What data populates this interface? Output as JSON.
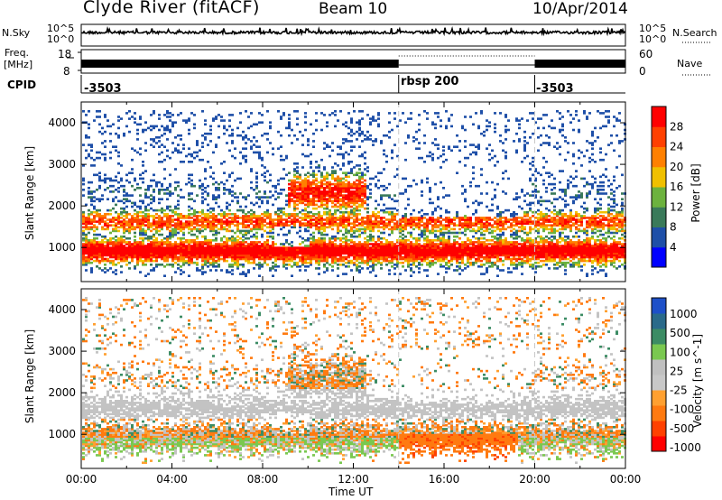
{
  "header": {
    "title": "Clyde River (fitACF)",
    "beam": "Beam 10",
    "date": "10/Apr/2014"
  },
  "top_panels": {
    "nsky_label": "N.Sky",
    "nsearch_label": "N.Search",
    "noise_ticks_left": [
      "10^5",
      "10^0"
    ],
    "noise_ticks_right": [
      "10^5",
      "10^0"
    ],
    "freq_label_line1": "Freq.",
    "freq_label_line2": "[MHz]",
    "freq_ticks": [
      "18",
      "8"
    ],
    "nave_label": "Nave",
    "nave_ticks": [
      "60",
      "0"
    ],
    "cpid_label": "CPID",
    "cpid_segments": [
      {
        "label": "-3503",
        "start_hour": 0
      },
      {
        "label": "rbsp 200",
        "start_hour": 14
      },
      {
        "label": "-3503",
        "start_hour": 20
      }
    ]
  },
  "colors": {
    "power": [
      "#0000ff",
      "#1e4fa8",
      "#3a7a5a",
      "#6cb23e",
      "#f0c000",
      "#ff8000",
      "#ff4000",
      "#ff0000"
    ],
    "velocity": [
      "#ff0000",
      "#ff4000",
      "#ff7a10",
      "#ffa030",
      "#c8c8c8",
      "#c0c0c0",
      "#7ac850",
      "#3c8c64",
      "#2a6a8a",
      "#1e50c8"
    ],
    "ground_scatter": "#c3c3c3"
  },
  "chart_data": [
    {
      "type": "heatmap",
      "name": "power-panel",
      "xlabel": "",
      "ylabel": "Slant Range [km]",
      "xlim": [
        0,
        24
      ],
      "ylim": [
        180,
        4500
      ],
      "yticks": [
        "4000",
        "3000",
        "2000",
        "1000"
      ],
      "yticks_values": [
        4000,
        3000,
        2000,
        1000
      ],
      "colorbar_label": "Power [dB]",
      "colorbar_ticks": [
        "28",
        "24",
        "20",
        "16",
        "12",
        "8",
        "4"
      ],
      "colorbar_values": [
        28,
        24,
        20,
        16,
        12,
        8,
        4
      ],
      "colorbar_range": [
        0,
        32
      ]
    },
    {
      "type": "heatmap",
      "name": "velocity-panel",
      "xlabel": "Time UT",
      "ylabel": "Slant Range [km]",
      "xlim": [
        0,
        24
      ],
      "ylim": [
        180,
        4500
      ],
      "xticks": [
        "00:00",
        "04:00",
        "08:00",
        "12:00",
        "16:00",
        "20:00",
        "00:00"
      ],
      "xticks_values": [
        0,
        4,
        8,
        12,
        16,
        20,
        24
      ],
      "yticks": [
        "4000",
        "3000",
        "2000",
        "1000"
      ],
      "yticks_values": [
        4000,
        3000,
        2000,
        1000
      ],
      "colorbar_label": "Velocity [m s^-1]",
      "colorbar_ticks": [
        "1000",
        "500",
        "100",
        "25",
        "-25",
        "-100",
        "-500",
        "-1000"
      ]
    }
  ]
}
